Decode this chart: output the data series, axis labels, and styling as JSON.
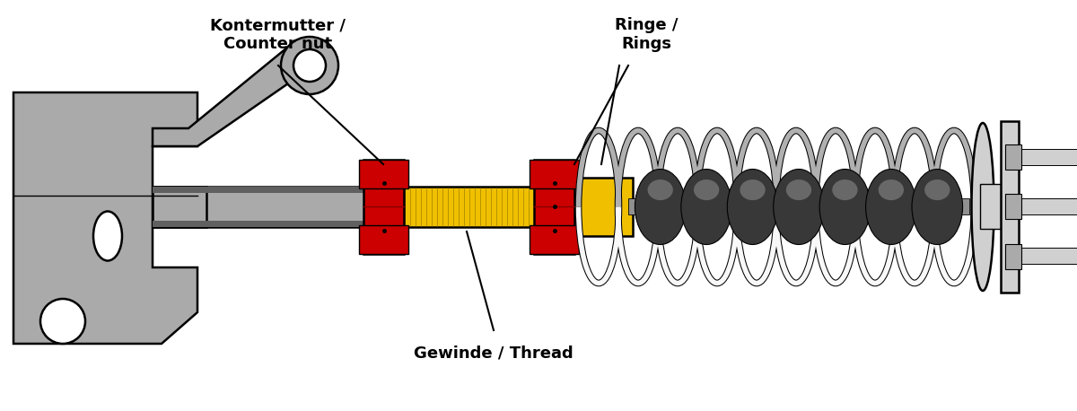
{
  "labels": {
    "counter_nut": "Kontermutter /\nCounter nut",
    "rings": "Ringe /\nRings",
    "thread": "Gewinde / Thread"
  },
  "colors": {
    "gray_body": "#AAAAAA",
    "gray_dark": "#606060",
    "gray_light": "#D0D0D0",
    "gray_mid": "#909090",
    "red": "#CC0000",
    "red_dark": "#880000",
    "yellow": "#F0C000",
    "yellow_line": "#A08000",
    "black": "#000000",
    "white": "#FFFFFF",
    "spring_white": "#F8F8F8",
    "spring_gray": "#B0B0B0",
    "bracket_gray": "#AAAAAA",
    "bump_dark": "#383838",
    "bump_mid": "#585858",
    "bump_light": "#686868"
  },
  "figsize": [
    12.0,
    4.58
  ],
  "dpi": 100
}
